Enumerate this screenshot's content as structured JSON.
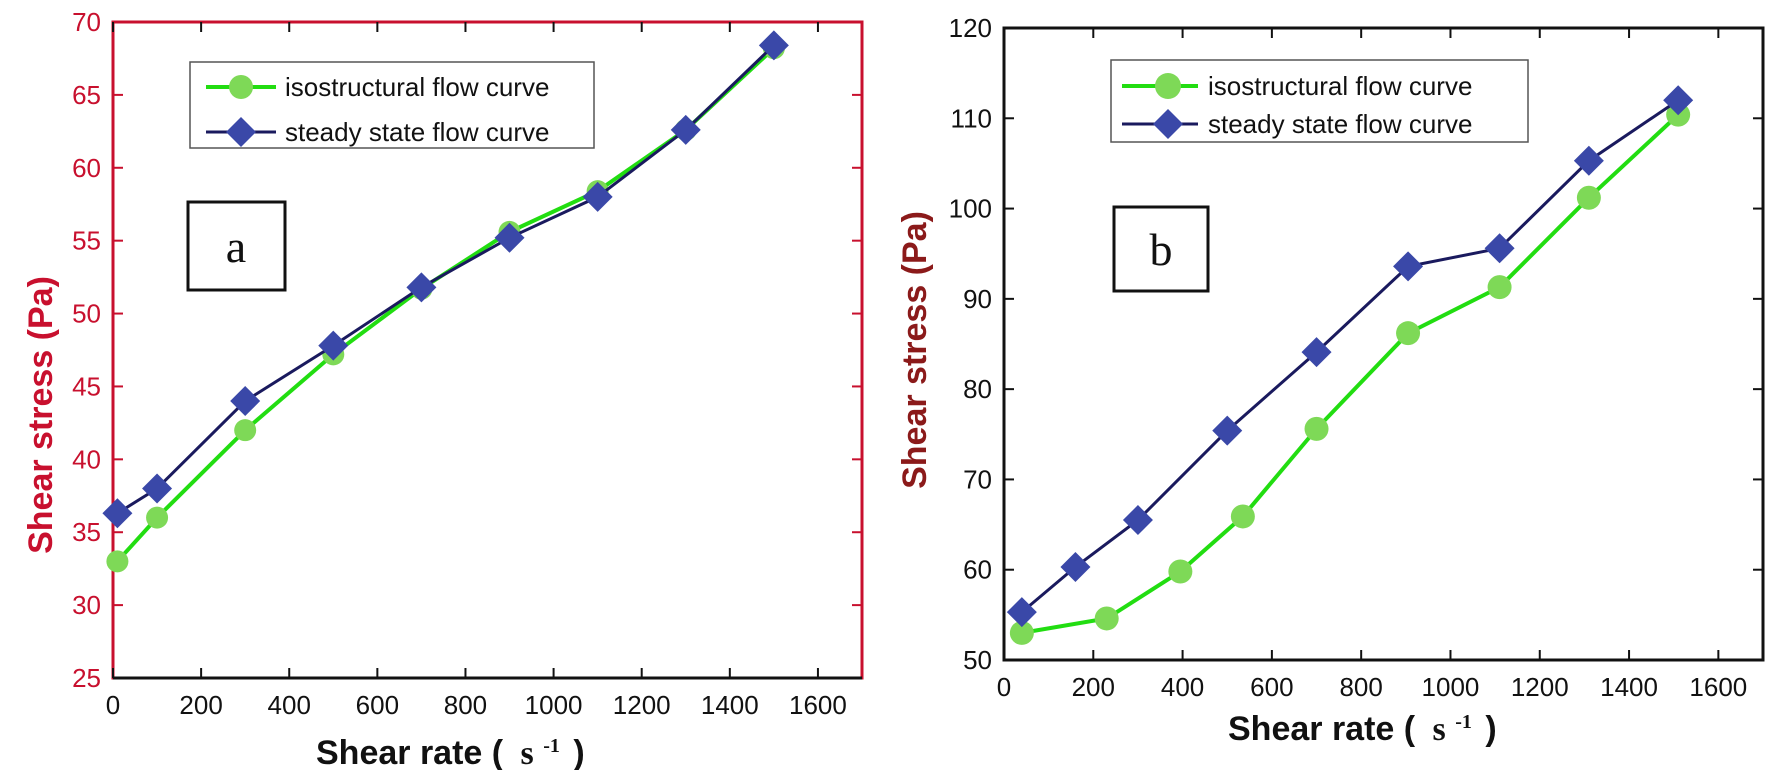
{
  "colors": {
    "iso_line": "#22dd11",
    "iso_marker": "#7ed957",
    "steady_line": "#1a1a5e",
    "steady_marker": "#3a48a8",
    "axis_red": "#c8102e",
    "tick_dark": "#111111"
  },
  "chart_data": [
    {
      "type": "line",
      "panel_label": "a",
      "xlabel": "Shear rate (",
      "xlabel_unit": "s",
      "xlabel_unit_exp": "-1",
      "xlabel_close": ")",
      "ylabel": "Shear stress (Pa)",
      "xlim": [
        0,
        1700
      ],
      "ylim": [
        25,
        70
      ],
      "xticks": [
        0,
        200,
        400,
        600,
        800,
        1000,
        1200,
        1400,
        1600
      ],
      "yticks": [
        25,
        30,
        35,
        40,
        45,
        50,
        55,
        60,
        65,
        70
      ],
      "ytick_color": "red",
      "axis_frame_color": "red",
      "legend_position": "top-left",
      "series": [
        {
          "name": "isostructural flow curve",
          "marker": "circle",
          "color": "green",
          "x": [
            10,
            100,
            300,
            500,
            700,
            900,
            1100,
            1300,
            1500
          ],
          "y": [
            33.0,
            36.0,
            42.0,
            47.2,
            51.7,
            55.6,
            58.4,
            62.6,
            68.2
          ]
        },
        {
          "name": "steady state flow curve",
          "marker": "diamond",
          "color": "navy",
          "x": [
            10,
            100,
            300,
            500,
            700,
            900,
            1100,
            1300,
            1500
          ],
          "y": [
            36.3,
            38.0,
            44.0,
            47.8,
            51.8,
            55.2,
            58.0,
            62.6,
            68.4
          ]
        }
      ]
    },
    {
      "type": "line",
      "panel_label": "b",
      "xlabel": "Shear rate (",
      "xlabel_unit": "s",
      "xlabel_unit_exp": "-1",
      "xlabel_close": ")",
      "ylabel": "Shear stress (Pa)",
      "xlim": [
        0,
        1700
      ],
      "ylim": [
        50,
        120
      ],
      "xticks": [
        0,
        200,
        400,
        600,
        800,
        1000,
        1200,
        1400,
        1600
      ],
      "yticks": [
        50,
        60,
        70,
        80,
        90,
        100,
        110,
        120
      ],
      "ytick_color": "black",
      "axis_frame_color": "black",
      "legend_position": "top-left",
      "series": [
        {
          "name": "isostructural flow curve",
          "marker": "circle",
          "color": "green",
          "x": [
            40,
            230,
            395,
            535,
            700,
            905,
            1110,
            1310,
            1510
          ],
          "y": [
            53.0,
            54.6,
            59.8,
            65.9,
            75.6,
            86.2,
            91.3,
            101.2,
            110.4
          ]
        },
        {
          "name": "steady state flow curve",
          "marker": "diamond",
          "color": "navy",
          "x": [
            40,
            160,
            300,
            500,
            700,
            905,
            1110,
            1310,
            1510
          ],
          "y": [
            55.3,
            60.3,
            65.5,
            75.4,
            84.1,
            93.6,
            95.6,
            105.3,
            112.0
          ]
        }
      ]
    }
  ]
}
